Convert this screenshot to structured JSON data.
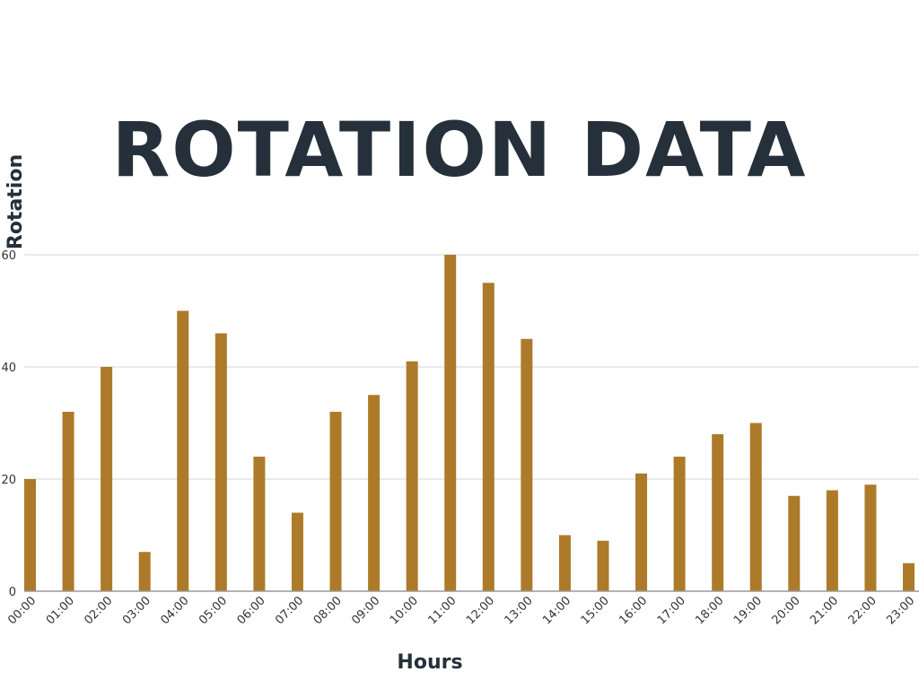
{
  "chart_data": {
    "type": "bar",
    "title": "ROTATION DATA",
    "xlabel": "Hours",
    "ylabel": "Rotation",
    "categories": [
      "00:00",
      "01:00",
      "02:00",
      "03:00",
      "04:00",
      "05:00",
      "06:00",
      "07:00",
      "08:00",
      "09:00",
      "10:00",
      "11:00",
      "12:00",
      "13:00",
      "14:00",
      "15:00",
      "16:00",
      "17:00",
      "18:00",
      "19:00",
      "20:00",
      "21:00",
      "22:00",
      "23:00"
    ],
    "values": [
      20,
      32,
      40,
      7,
      50,
      46,
      24,
      14,
      32,
      35,
      41,
      60,
      55,
      45,
      10,
      9,
      21,
      24,
      28,
      30,
      17,
      18,
      19,
      5
    ],
    "ylim": [
      0,
      60
    ],
    "yticks": [
      0,
      20,
      40,
      60
    ],
    "grid": true,
    "bar_color": "#ad7a2a",
    "grid_color": "#dddddd",
    "title_color": "#25303a"
  }
}
